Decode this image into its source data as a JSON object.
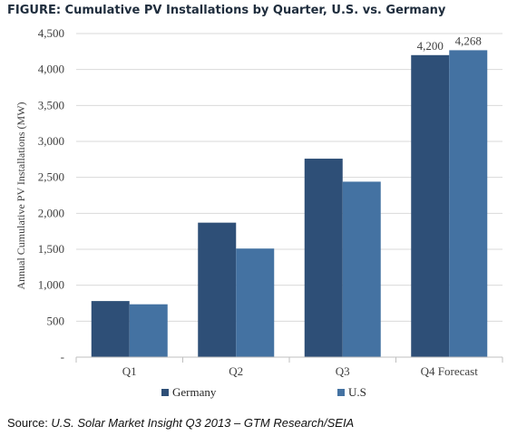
{
  "title": "FIGURE: Cumulative PV Installations by Quarter, U.S. vs. Germany",
  "source": {
    "label": "Source: ",
    "text": "U.S. Solar Market Insight Q3 2013 – GTM Research/SEIA"
  },
  "chart_data": {
    "type": "bar",
    "title": "FIGURE: Cumulative PV Installations by Quarter, U.S. vs. Germany",
    "ylabel": "Annual Cumulative PV Installations (MW)",
    "xlabel": "",
    "categories": [
      "Q1",
      "Q2",
      "Q3",
      "Q4 Forecast"
    ],
    "ylim": [
      0,
      4500
    ],
    "yticks": [
      0,
      500,
      1000,
      1500,
      2000,
      2500,
      3000,
      3500,
      4000,
      4500
    ],
    "ytick_labels": [
      "-",
      "500",
      "1,000",
      "1,500",
      "2,000",
      "2,500",
      "3,000",
      "3,500",
      "4,000",
      "4,500"
    ],
    "grid": true,
    "legend_position": "bottom",
    "series": [
      {
        "name": "Germany",
        "color": "#2e4f77",
        "values": [
          780,
          1870,
          2760,
          4200
        ]
      },
      {
        "name": "U.S",
        "color": "#4472a2",
        "values": [
          735,
          1510,
          2440,
          4268
        ]
      }
    ],
    "data_labels": [
      {
        "series": 0,
        "category": 3,
        "text": "4,200"
      },
      {
        "series": 1,
        "category": 3,
        "text": "4,268"
      }
    ]
  }
}
